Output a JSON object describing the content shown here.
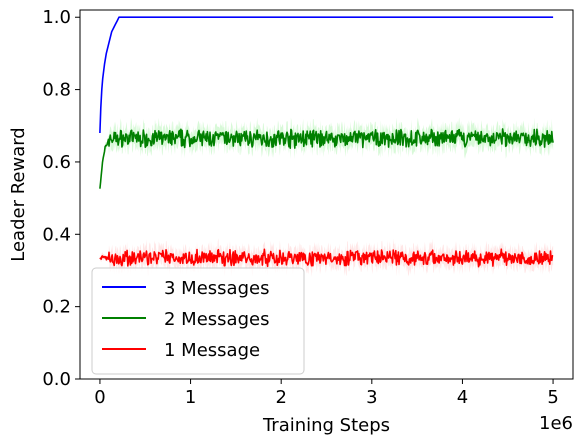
{
  "chart_data": {
    "type": "line",
    "xlabel": "Training Steps",
    "ylabel": "Leader Reward",
    "x_offset_label": "1e6",
    "xlim": [
      -0.22,
      5.22
    ],
    "ylim": [
      0.0,
      1.02
    ],
    "xticks": [
      0,
      1,
      2,
      3,
      4,
      5
    ],
    "xtick_labels": [
      "0",
      "1",
      "2",
      "3",
      "4",
      "5"
    ],
    "yticks": [
      0.0,
      0.2,
      0.4,
      0.6,
      0.8,
      1.0
    ],
    "ytick_labels": [
      "0.0",
      "0.2",
      "0.4",
      "0.6",
      "0.8",
      "1.0"
    ],
    "grid": false,
    "legend_position": "lower-left",
    "series": [
      {
        "name": "3 Messages",
        "color": "#0000ff",
        "band_color": "#ccccff",
        "x": [
          0,
          0.01,
          0.02,
          0.03,
          0.05,
          0.07,
          0.09,
          0.11,
          0.13,
          0.15,
          0.17,
          0.19,
          0.21,
          0.25,
          1,
          2,
          3,
          4,
          5
        ],
        "values": [
          0.68,
          0.75,
          0.8,
          0.83,
          0.87,
          0.9,
          0.92,
          0.94,
          0.96,
          0.97,
          0.98,
          0.99,
          1.0,
          1.0,
          1.0,
          1.0,
          1.0,
          1.0,
          1.0
        ],
        "noise": 0
      },
      {
        "name": "2 Messages",
        "color": "#008000",
        "band_color": "#90ee90",
        "x": [
          0,
          0.03,
          0.06,
          0.1,
          5
        ],
        "values": [
          0.53,
          0.6,
          0.64,
          0.665,
          0.665
        ],
        "noise": 0.02
      },
      {
        "name": "1 Message",
        "color": "#ff0000",
        "band_color": "#ffb6b6",
        "x": [
          0,
          5
        ],
        "values": [
          0.335,
          0.335
        ],
        "noise": 0.018
      }
    ]
  }
}
